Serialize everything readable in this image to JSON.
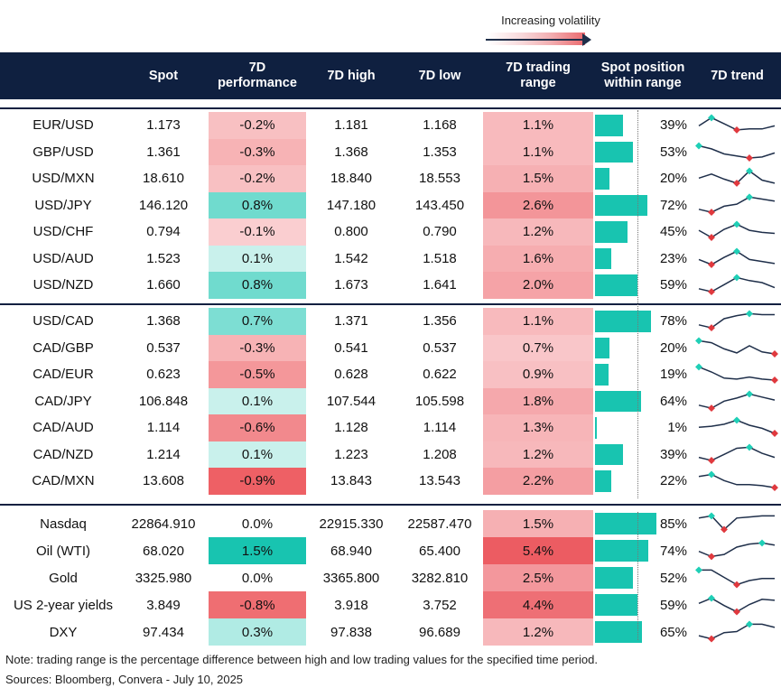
{
  "legend": {
    "label": "Increasing volatility"
  },
  "header": {
    "spot": "Spot",
    "perf": "7D\nperformance",
    "high": "7D high",
    "low": "7D low",
    "range": "7D trading\nrange",
    "position": "Spot position\nwithin range",
    "trend": "7D trend"
  },
  "footer": {
    "note": "Note: trading range is the percentage difference between high and low trading values for the specified time period.",
    "sources": "Sources: Bloomberg, Convera - July 10, 2025"
  },
  "colors": {
    "header": "#0f2040",
    "positive": "#18c4b0",
    "negative": "#ee6065",
    "marker_high": "#1fcfb6",
    "marker_low": "#e0393e"
  },
  "chart_data": {
    "type": "table",
    "groups": [
      {
        "name": "usd-majors",
        "rows": [
          {
            "name": "EUR/USD",
            "spot": "1.173",
            "perf": "-0.2%",
            "perf_value": -0.2,
            "high": "1.181",
            "low": "1.168",
            "range": "1.1%",
            "range_value": 1.1,
            "pos": "39%",
            "pos_value": 39,
            "trend": [
              0.45,
              0.85,
              0.55,
              0.25,
              0.3,
              0.3,
              0.45
            ]
          },
          {
            "name": "GBP/USD",
            "spot": "1.361",
            "perf": "-0.3%",
            "perf_value": -0.3,
            "high": "1.368",
            "low": "1.353",
            "range": "1.1%",
            "range_value": 1.1,
            "pos": "53%",
            "pos_value": 53,
            "trend": [
              0.8,
              0.65,
              0.4,
              0.3,
              0.2,
              0.25,
              0.45
            ]
          },
          {
            "name": "USD/MXN",
            "spot": "18.610",
            "perf": "-0.2%",
            "perf_value": -0.2,
            "high": "18.840",
            "low": "18.553",
            "range": "1.5%",
            "range_value": 1.5,
            "pos": "20%",
            "pos_value": 20,
            "trend": [
              0.5,
              0.7,
              0.45,
              0.25,
              0.85,
              0.4,
              0.25
            ]
          },
          {
            "name": "USD/JPY",
            "spot": "146.120",
            "perf": "0.8%",
            "perf_value": 0.8,
            "high": "147.180",
            "low": "143.450",
            "range": "2.6%",
            "range_value": 2.6,
            "pos": "72%",
            "pos_value": 72,
            "trend": [
              0.3,
              0.15,
              0.45,
              0.55,
              0.9,
              0.8,
              0.7
            ]
          },
          {
            "name": "USD/CHF",
            "spot": "0.794",
            "perf": "-0.1%",
            "perf_value": -0.1,
            "high": "0.800",
            "low": "0.790",
            "range": "1.2%",
            "range_value": 1.2,
            "pos": "45%",
            "pos_value": 45,
            "trend": [
              0.55,
              0.2,
              0.6,
              0.85,
              0.55,
              0.45,
              0.4
            ]
          },
          {
            "name": "USD/AUD",
            "spot": "1.523",
            "perf": "0.1%",
            "perf_value": 0.1,
            "high": "1.542",
            "low": "1.518",
            "range": "1.6%",
            "range_value": 1.6,
            "pos": "23%",
            "pos_value": 23,
            "trend": [
              0.45,
              0.2,
              0.55,
              0.85,
              0.45,
              0.35,
              0.25
            ]
          },
          {
            "name": "USD/NZD",
            "spot": "1.660",
            "perf": "0.8%",
            "perf_value": 0.8,
            "high": "1.673",
            "low": "1.641",
            "range": "2.0%",
            "range_value": 2.0,
            "pos": "59%",
            "pos_value": 59,
            "trend": [
              0.3,
              0.15,
              0.5,
              0.85,
              0.7,
              0.6,
              0.35
            ]
          }
        ]
      },
      {
        "name": "cad-crosses",
        "rows": [
          {
            "name": "USD/CAD",
            "spot": "1.368",
            "perf": "0.7%",
            "perf_value": 0.7,
            "high": "1.371",
            "low": "1.356",
            "range": "1.1%",
            "range_value": 1.1,
            "pos": "78%",
            "pos_value": 78,
            "trend": [
              0.3,
              0.15,
              0.6,
              0.75,
              0.85,
              0.8,
              0.8
            ]
          },
          {
            "name": "CAD/GBP",
            "spot": "0.537",
            "perf": "-0.3%",
            "perf_value": -0.3,
            "high": "0.541",
            "low": "0.537",
            "range": "0.7%",
            "range_value": 0.7,
            "pos": "20%",
            "pos_value": 20,
            "trend": [
              0.85,
              0.75,
              0.45,
              0.25,
              0.6,
              0.3,
              0.2
            ]
          },
          {
            "name": "CAD/EUR",
            "spot": "0.623",
            "perf": "-0.5%",
            "perf_value": -0.5,
            "high": "0.628",
            "low": "0.622",
            "range": "0.9%",
            "range_value": 0.9,
            "pos": "19%",
            "pos_value": 19,
            "trend": [
              0.85,
              0.6,
              0.3,
              0.25,
              0.35,
              0.25,
              0.2
            ]
          },
          {
            "name": "CAD/JPY",
            "spot": "106.848",
            "perf": "0.1%",
            "perf_value": 0.1,
            "high": "107.544",
            "low": "105.598",
            "range": "1.8%",
            "range_value": 1.8,
            "pos": "64%",
            "pos_value": 64,
            "trend": [
              0.3,
              0.15,
              0.5,
              0.65,
              0.85,
              0.7,
              0.55
            ]
          },
          {
            "name": "CAD/AUD",
            "spot": "1.114",
            "perf": "-0.6%",
            "perf_value": -0.6,
            "high": "1.128",
            "low": "1.114",
            "range": "1.3%",
            "range_value": 1.3,
            "pos": "1%",
            "pos_value": 1,
            "trend": [
              0.5,
              0.55,
              0.65,
              0.85,
              0.6,
              0.45,
              0.2
            ]
          },
          {
            "name": "CAD/NZD",
            "spot": "1.214",
            "perf": "0.1%",
            "perf_value": 0.1,
            "high": "1.223",
            "low": "1.208",
            "range": "1.2%",
            "range_value": 1.2,
            "pos": "39%",
            "pos_value": 39,
            "trend": [
              0.35,
              0.2,
              0.5,
              0.8,
              0.85,
              0.55,
              0.35
            ]
          },
          {
            "name": "CAD/MXN",
            "spot": "13.608",
            "perf": "-0.9%",
            "perf_value": -0.9,
            "high": "13.843",
            "low": "13.543",
            "range": "2.2%",
            "range_value": 2.2,
            "pos": "22%",
            "pos_value": 22,
            "trend": [
              0.7,
              0.8,
              0.5,
              0.3,
              0.3,
              0.25,
              0.15
            ]
          }
        ]
      },
      {
        "name": "other-assets",
        "rows": [
          {
            "name": "Nasdaq",
            "spot": "22864.910",
            "perf": "0.0%",
            "perf_value": 0.0,
            "high": "22915.330",
            "low": "22587.470",
            "range": "1.5%",
            "range_value": 1.5,
            "pos": "85%",
            "pos_value": 85,
            "trend": [
              0.75,
              0.85,
              0.2,
              0.75,
              0.8,
              0.85,
              0.85
            ]
          },
          {
            "name": "Oil (WTI)",
            "spot": "68.020",
            "perf": "1.5%",
            "perf_value": 1.5,
            "high": "68.940",
            "low": "65.400",
            "range": "5.4%",
            "range_value": 5.4,
            "pos": "74%",
            "pos_value": 74,
            "trend": [
              0.45,
              0.2,
              0.3,
              0.65,
              0.8,
              0.85,
              0.75
            ]
          },
          {
            "name": "Gold",
            "spot": "3325.980",
            "perf": "0.0%",
            "perf_value": 0.0,
            "high": "3365.800",
            "low": "3282.810",
            "range": "2.5%",
            "range_value": 2.5,
            "pos": "52%",
            "pos_value": 52,
            "trend": [
              0.85,
              0.85,
              0.5,
              0.15,
              0.35,
              0.45,
              0.45
            ]
          },
          {
            "name": "US 2-year yields",
            "spot": "3.849",
            "perf": "-0.8%",
            "perf_value": -0.8,
            "high": "3.918",
            "low": "3.752",
            "range": "4.4%",
            "range_value": 4.4,
            "pos": "59%",
            "pos_value": 59,
            "trend": [
              0.55,
              0.8,
              0.45,
              0.15,
              0.5,
              0.75,
              0.7
            ]
          },
          {
            "name": "DXY",
            "spot": "97.434",
            "perf": "0.3%",
            "perf_value": 0.3,
            "high": "97.838",
            "low": "96.689",
            "range": "1.2%",
            "range_value": 1.2,
            "pos": "65%",
            "pos_value": 65,
            "trend": [
              0.3,
              0.15,
              0.45,
              0.5,
              0.85,
              0.85,
              0.7
            ]
          }
        ]
      }
    ]
  }
}
